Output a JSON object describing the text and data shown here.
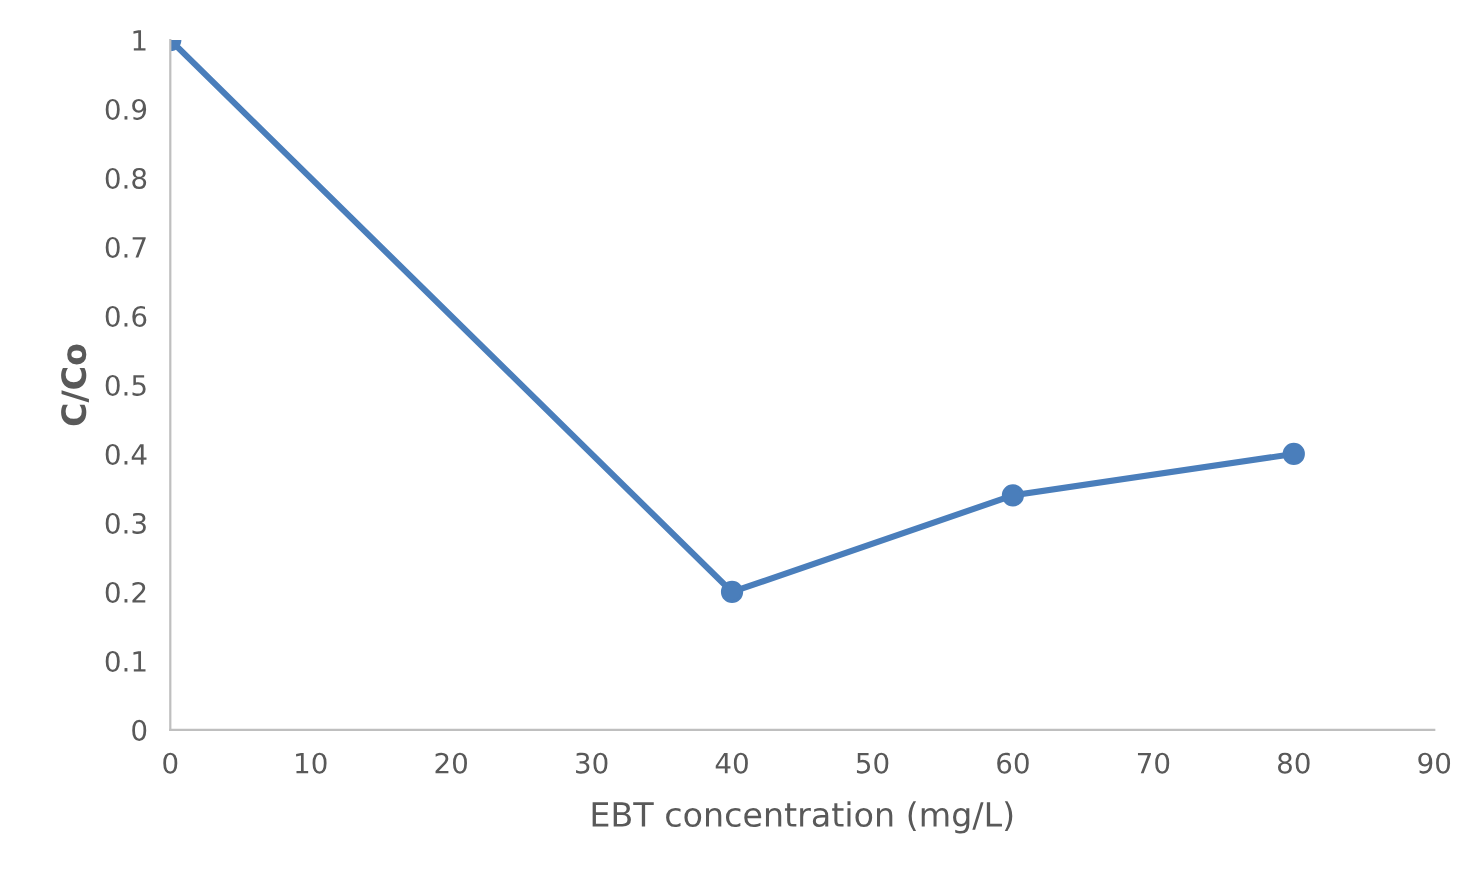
{
  "chart_data": {
    "type": "line",
    "xlabel": "EBT concentration (mg/L)",
    "ylabel": "C/Co",
    "x": [
      0,
      40,
      60,
      80
    ],
    "series": [
      {
        "color": "#4a7ebb",
        "values": [
          1,
          0.2,
          0.34,
          0.4
        ]
      }
    ],
    "xlim": [
      0,
      90
    ],
    "xticks": [
      0,
      10,
      20,
      30,
      40,
      50,
      60,
      70,
      80,
      90
    ],
    "ylim": [
      0,
      1
    ],
    "yticks": [
      0,
      0.1,
      0.2,
      0.3,
      0.4,
      0.5,
      0.6,
      0.7,
      0.8,
      0.9,
      1
    ],
    "marker": "circle",
    "line_style": "solid",
    "grid": false,
    "legend": false
  }
}
